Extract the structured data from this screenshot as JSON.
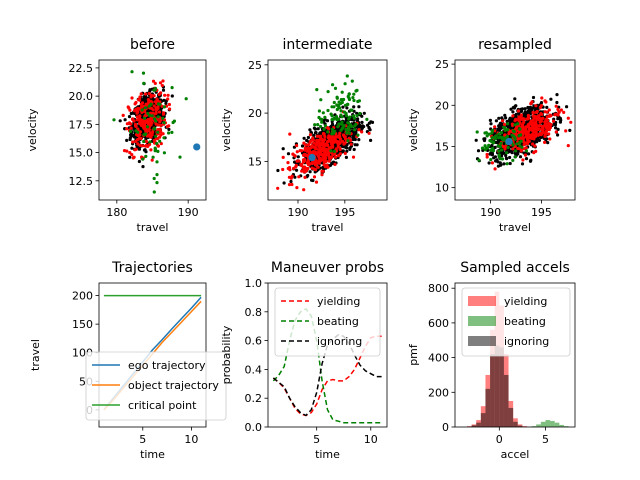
{
  "chart_data": [
    {
      "id": "before",
      "type": "scatter",
      "title": "before",
      "xlabel": "travel",
      "ylabel": "velocity",
      "xlim": [
        177.5,
        192.5
      ],
      "ylim": [
        10.8,
        23.2
      ],
      "xticks": [
        180,
        190
      ],
      "yticks": [
        12.5,
        15.0,
        17.5,
        20.0,
        22.5
      ],
      "ytick_labels": [
        "12.5",
        "15.0",
        "17.5",
        "20.0",
        "22.5"
      ],
      "clouds": [
        {
          "name": "black",
          "color": "#000000",
          "cx": 184.3,
          "cy": 18.0,
          "sx": 1.1,
          "sy": 1.0,
          "slope": 0.35,
          "n": 700
        },
        {
          "name": "red",
          "color": "#ff0000",
          "cx": 184.3,
          "cy": 17.8,
          "sx": 1.3,
          "sy": 1.4,
          "slope": 0.3,
          "n": 260
        },
        {
          "name": "green",
          "color": "#008000",
          "cx": 185.0,
          "cy": 17.0,
          "sx": 1.8,
          "sy": 2.3,
          "slope": 0.0,
          "n": 60
        }
      ],
      "marker": {
        "x": 191.2,
        "y": 15.5,
        "color": "#1f77b4"
      }
    },
    {
      "id": "intermediate",
      "type": "scatter",
      "title": "intermediate",
      "xlabel": "travel",
      "ylabel": "velocity",
      "xlim": [
        186.8,
        199.5
      ],
      "ylim": [
        11.0,
        25.5
      ],
      "xticks": [
        190,
        195
      ],
      "yticks": [
        15,
        20,
        25
      ],
      "ytick_labels": [
        "15",
        "20",
        "25"
      ],
      "clouds": [
        {
          "name": "black",
          "color": "#000000",
          "cx": 193.5,
          "cy": 17.0,
          "sx": 1.5,
          "sy": 1.0,
          "slope": 0.55,
          "n": 900
        },
        {
          "name": "red",
          "color": "#ff0000",
          "cx": 192.3,
          "cy": 16.0,
          "sx": 1.6,
          "sy": 1.0,
          "slope": 0.55,
          "n": 320
        },
        {
          "name": "green",
          "color": "#008000",
          "cx": 194.5,
          "cy": 19.8,
          "sx": 1.2,
          "sy": 1.6,
          "slope": 0.3,
          "n": 110
        }
      ],
      "marker": {
        "x": 191.5,
        "y": 15.4,
        "color": "#1f77b4"
      }
    },
    {
      "id": "resampled",
      "type": "scatter",
      "title": "resampled",
      "xlabel": "travel",
      "ylabel": "velocity",
      "xlim": [
        186.5,
        198.3
      ],
      "ylim": [
        8.5,
        25.5
      ],
      "xticks": [
        190,
        195
      ],
      "yticks": [
        10,
        15,
        20,
        25
      ],
      "ytick_labels": [
        "10",
        "15",
        "20",
        "25"
      ],
      "clouds": [
        {
          "name": "black",
          "color": "#000000",
          "cx": 193.0,
          "cy": 16.8,
          "sx": 1.5,
          "sy": 1.3,
          "slope": 0.5,
          "n": 800
        },
        {
          "name": "red",
          "color": "#ff0000",
          "cx": 193.8,
          "cy": 17.0,
          "sx": 1.5,
          "sy": 1.2,
          "slope": 0.45,
          "n": 300
        },
        {
          "name": "green",
          "color": "#008000",
          "cx": 191.0,
          "cy": 15.5,
          "sx": 1.1,
          "sy": 1.1,
          "slope": 0.1,
          "n": 90
        }
      ],
      "marker": {
        "x": 191.8,
        "y": 15.6,
        "color": "#1f77b4"
      }
    },
    {
      "id": "trajectories",
      "type": "line",
      "title": "Trajectories",
      "xlabel": "time",
      "ylabel": "travel",
      "xlim": [
        0.5,
        11.5
      ],
      "ylim": [
        -30,
        222
      ],
      "xticks": [
        5,
        10
      ],
      "yticks": [
        0,
        50,
        100,
        150,
        200
      ],
      "ytick_labels": [
        "0",
        "50",
        "100",
        "150",
        "200"
      ],
      "x": [
        1,
        2,
        3,
        4,
        5,
        6,
        7,
        8,
        9,
        10,
        11
      ],
      "series": [
        {
          "name": "ego trajectory",
          "color": "#1f77b4",
          "values": [
            0,
            21,
            42,
            63,
            84,
            105,
            123,
            142,
            160,
            178,
            197
          ]
        },
        {
          "name": "object trajectory",
          "color": "#ff7f0e",
          "values": [
            0,
            18,
            38,
            58,
            78,
            98,
            118,
            136,
            154,
            172,
            190
          ]
        },
        {
          "name": "critical point",
          "color": "#2ca02c",
          "values": [
            200,
            200,
            200,
            200,
            200,
            200,
            200,
            200,
            200,
            200,
            200
          ]
        }
      ],
      "legend": "lower-right"
    },
    {
      "id": "maneuver",
      "type": "line",
      "title": "Maneuver probs",
      "xlabel": "time",
      "ylabel": "probability",
      "xlim": [
        0.5,
        11.5
      ],
      "ylim": [
        0,
        1.0
      ],
      "xticks": [
        5,
        10
      ],
      "yticks": [
        0.0,
        0.2,
        0.4,
        0.6,
        0.8,
        1.0
      ],
      "ytick_labels": [
        "0.0",
        "0.2",
        "0.4",
        "0.6",
        "0.8",
        "1.0"
      ],
      "x": [
        1,
        1.5,
        2,
        2.5,
        3,
        3.5,
        4,
        4.5,
        5,
        5.5,
        6,
        6.5,
        7,
        7.5,
        8,
        8.5,
        9,
        9.5,
        10,
        10.5,
        11
      ],
      "series": [
        {
          "name": "yielding",
          "color": "#ff0000",
          "dash": "5,3",
          "values": [
            0.34,
            0.31,
            0.27,
            0.2,
            0.13,
            0.09,
            0.08,
            0.1,
            0.16,
            0.26,
            0.32,
            0.33,
            0.32,
            0.32,
            0.35,
            0.4,
            0.48,
            0.56,
            0.62,
            0.63,
            0.63
          ]
        },
        {
          "name": "beating",
          "color": "#008000",
          "dash": "5,3",
          "values": [
            0.32,
            0.36,
            0.42,
            0.6,
            0.74,
            0.8,
            0.82,
            0.77,
            0.6,
            0.32,
            0.12,
            0.05,
            0.04,
            0.03,
            0.03,
            0.03,
            0.03,
            0.03,
            0.03,
            0.03,
            0.03
          ]
        },
        {
          "name": "ignoring",
          "color": "#000000",
          "dash": "5,3",
          "values": [
            0.34,
            0.31,
            0.28,
            0.2,
            0.14,
            0.1,
            0.08,
            0.12,
            0.24,
            0.44,
            0.57,
            0.61,
            0.64,
            0.63,
            0.58,
            0.5,
            0.43,
            0.39,
            0.37,
            0.35,
            0.35
          ]
        }
      ],
      "legend": "upper-left"
    },
    {
      "id": "accels",
      "type": "bar",
      "title": "Sampled accels",
      "xlabel": "accel",
      "ylabel": "pmf",
      "xlim": [
        -4.8,
        8.2
      ],
      "ylim": [
        0,
        830
      ],
      "xticks": [
        0,
        5
      ],
      "yticks": [
        0,
        200,
        400,
        600,
        800
      ],
      "ytick_labels": [
        "0",
        "200",
        "400",
        "600",
        "800"
      ],
      "bin_edges": [
        -3.5,
        -3.0,
        -2.5,
        -2.0,
        -1.5,
        -1.0,
        -0.5,
        0.0,
        0.5,
        1.0,
        1.5,
        2.0,
        2.5,
        3.0,
        3.5,
        4.0,
        4.5,
        5.0,
        5.5,
        6.0,
        6.5,
        7.0,
        7.5
      ],
      "series": [
        {
          "name": "yielding",
          "color": "#ff0000",
          "opacity": 0.5,
          "values": [
            5,
            15,
            40,
            120,
            300,
            560,
            780,
            700,
            420,
            150,
            50,
            15,
            5,
            0,
            0,
            0,
            0,
            0,
            0,
            0,
            0,
            0
          ]
        },
        {
          "name": "beating",
          "color": "#008000",
          "opacity": 0.5,
          "values": [
            0,
            0,
            0,
            0,
            0,
            0,
            0,
            0,
            0,
            0,
            0,
            0,
            0,
            0,
            5,
            15,
            30,
            40,
            35,
            25,
            12,
            5
          ]
        },
        {
          "name": "ignoring",
          "color": "#000000",
          "opacity": 0.5,
          "values": [
            2,
            10,
            25,
            80,
            220,
            420,
            470,
            460,
            300,
            110,
            30,
            8,
            2,
            0,
            0,
            0,
            0,
            0,
            0,
            0,
            0,
            0
          ]
        }
      ],
      "legend": "upper-right"
    }
  ]
}
